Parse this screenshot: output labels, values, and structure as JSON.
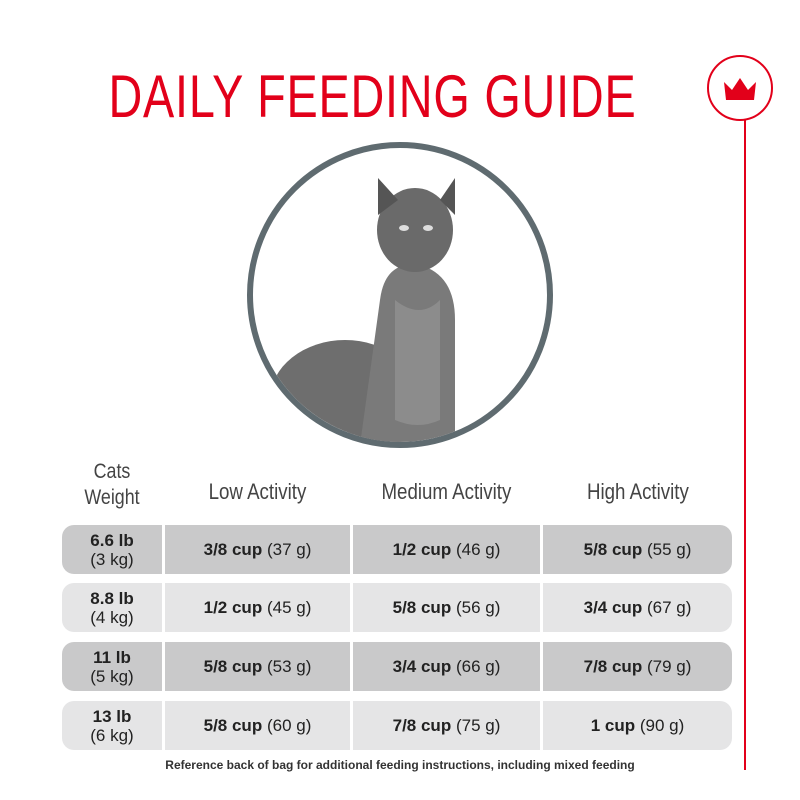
{
  "header": {
    "title": "DAILY FEEDING GUIDE"
  },
  "table": {
    "columns": [
      "Cats Weight",
      "Low Activity",
      "Medium Activity",
      "High Activity"
    ],
    "rows": [
      [
        {
          "bold": "6.6 lb",
          "regular": "(3 kg)"
        },
        {
          "bold": "3/8 cup",
          "regular": "(37 g)"
        },
        {
          "bold": "1/2 cup",
          "regular": "(46 g)"
        },
        {
          "bold": "5/8 cup",
          "regular": "(55 g)"
        }
      ],
      [
        {
          "bold": "8.8 lb",
          "regular": "(4 kg)"
        },
        {
          "bold": "1/2 cup",
          "regular": "(45 g)"
        },
        {
          "bold": "5/8 cup",
          "regular": "(56 g)"
        },
        {
          "bold": "3/4 cup",
          "regular": "(67 g)"
        }
      ],
      [
        {
          "bold": "11 lb",
          "regular": "(5 kg)"
        },
        {
          "bold": "5/8 cup",
          "regular": "(53 g)"
        },
        {
          "bold": "3/4 cup",
          "regular": "(66 g)"
        },
        {
          "bold": "7/8 cup",
          "regular": "(79 g)"
        }
      ],
      [
        {
          "bold": "13 lb",
          "regular": "(6 kg)"
        },
        {
          "bold": "5/8 cup",
          "regular": "(60 g)"
        },
        {
          "bold": "7/8 cup",
          "regular": "(75 g)"
        },
        {
          "bold": "1 cup",
          "regular": "(90 g)"
        }
      ]
    ]
  },
  "footer": "Reference back of bag for additional feeding instructions, including mixed feeding"
}
